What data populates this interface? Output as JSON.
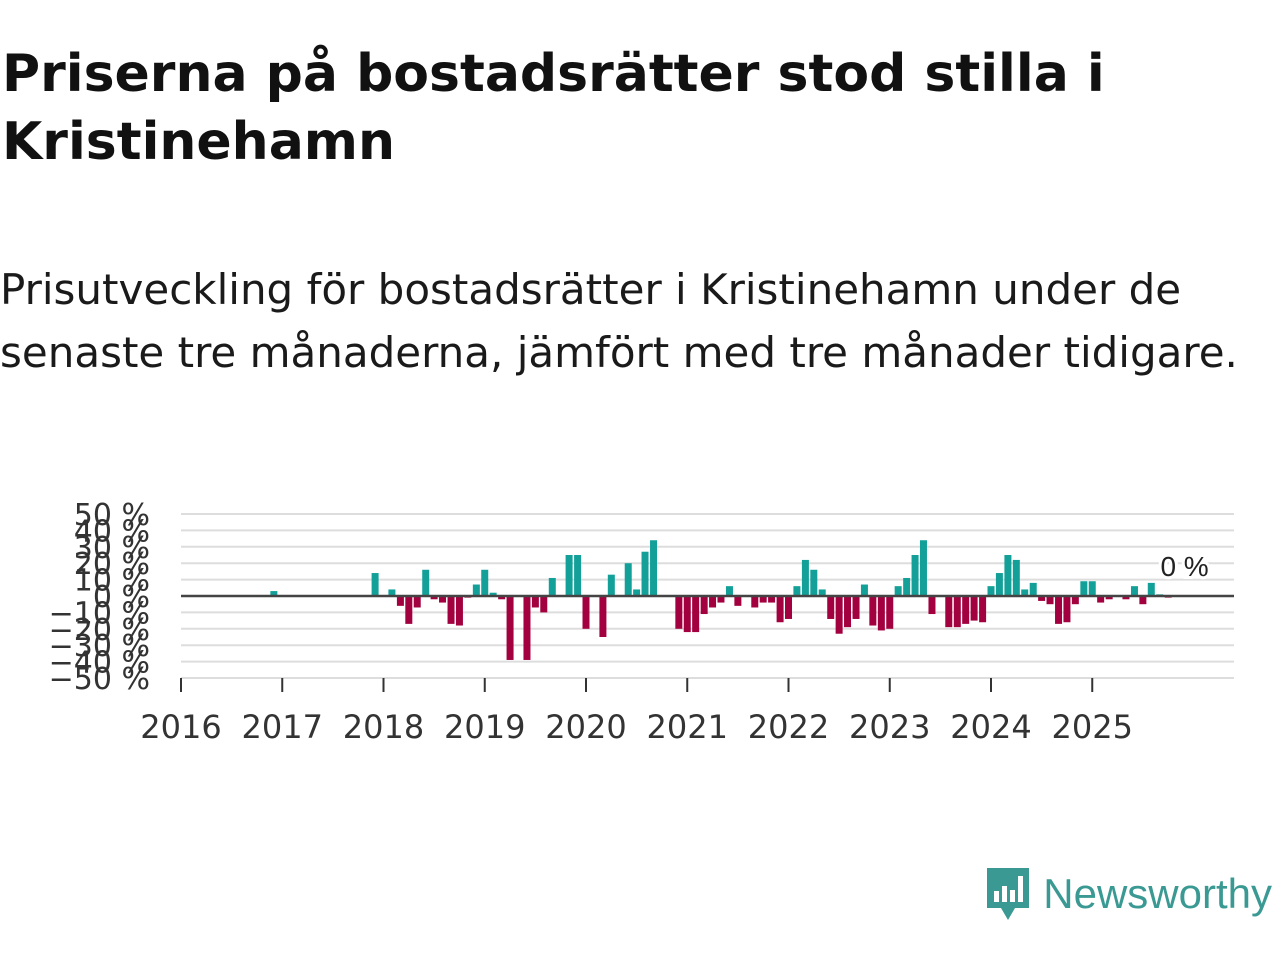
{
  "title": "Priserna på bostadsrätter stod stilla i Kristinehamn",
  "subtitle": "Prisutveckling för bostadsrätter i Kristinehamn under de senaste tre månaderna, jämfört med tre månader tidigare.",
  "brand": {
    "name": "Newsworthy",
    "icon": "newsworthy-logo-icon"
  },
  "colors": {
    "positive": "#13a099",
    "negative": "#a3003f",
    "grid": "#dddddd",
    "zero": "#444444",
    "brand": "#3a9a93"
  },
  "chart_data": {
    "type": "bar",
    "title": "Priserna på bostadsrätter stod stilla i Kristinehamn",
    "xlabel": "",
    "ylabel": "",
    "unit": "%",
    "ylim": [
      -50,
      50
    ],
    "yticks": [
      -50,
      -40,
      -30,
      -20,
      -10,
      0,
      10,
      20,
      30,
      40,
      50
    ],
    "ytick_labels": [
      "−50 %",
      "−40 %",
      "−30 %",
      "−20 %",
      "−10 %",
      "0 %",
      "10 %",
      "20 %",
      "30 %",
      "40 %",
      "50 %"
    ],
    "x_start_year": 2016,
    "x_end_year": 2026,
    "xtick_labels": [
      "2016",
      "2017",
      "2018",
      "2019",
      "2020",
      "2021",
      "2022",
      "2023",
      "2024",
      "2025"
    ],
    "grid": true,
    "last_value_label": "0 %",
    "series": [
      {
        "name": "Prisutveckling",
        "x": [
          2016.917,
          2017.917,
          2018.083,
          2018.167,
          2018.25,
          2018.333,
          2018.417,
          2018.5,
          2018.583,
          2018.667,
          2018.75,
          2018.833,
          2018.917,
          2019.0,
          2019.083,
          2019.167,
          2019.25,
          2019.417,
          2019.5,
          2019.583,
          2019.667,
          2019.833,
          2019.917,
          2020.0,
          2020.167,
          2020.25,
          2020.417,
          2020.5,
          2020.583,
          2020.667,
          2020.917,
          2021.0,
          2021.083,
          2021.167,
          2021.25,
          2021.333,
          2021.417,
          2021.5,
          2021.667,
          2021.75,
          2021.833,
          2021.917,
          2022.0,
          2022.083,
          2022.167,
          2022.25,
          2022.333,
          2022.417,
          2022.5,
          2022.583,
          2022.667,
          2022.75,
          2022.833,
          2022.917,
          2023.0,
          2023.083,
          2023.167,
          2023.25,
          2023.333,
          2023.417,
          2023.583,
          2023.667,
          2023.75,
          2023.833,
          2023.917,
          2024.0,
          2024.083,
          2024.167,
          2024.25,
          2024.333,
          2024.417,
          2024.5,
          2024.583,
          2024.667,
          2024.75,
          2024.833,
          2024.917,
          2025.0,
          2025.083,
          2025.167,
          2025.333,
          2025.417,
          2025.5,
          2025.583,
          2025.667,
          2025.75,
          2025.833
        ],
        "values": [
          3,
          14,
          4,
          -6,
          -17,
          -7,
          16,
          -2,
          -4,
          -17,
          -18,
          -1,
          7,
          16,
          2,
          -2,
          -39,
          -39,
          -7,
          -10,
          11,
          25,
          25,
          -20,
          -25,
          13,
          20,
          4,
          27,
          34,
          -20,
          -22,
          -22,
          -11,
          -7,
          -4,
          6,
          -6,
          -7,
          -4,
          -4,
          -16,
          -14,
          6,
          22,
          16,
          4,
          -14,
          -23,
          -19,
          -14,
          7,
          -18,
          -21,
          -20,
          6,
          11,
          25,
          34,
          -11,
          -19,
          -19,
          -17,
          -15,
          -16,
          6,
          14,
          25,
          22,
          4,
          8,
          -3,
          -5,
          -17,
          -16,
          -5,
          9,
          9,
          -4,
          -2,
          -2,
          6,
          -5,
          8,
          1,
          -1,
          0
        ]
      }
    ]
  }
}
